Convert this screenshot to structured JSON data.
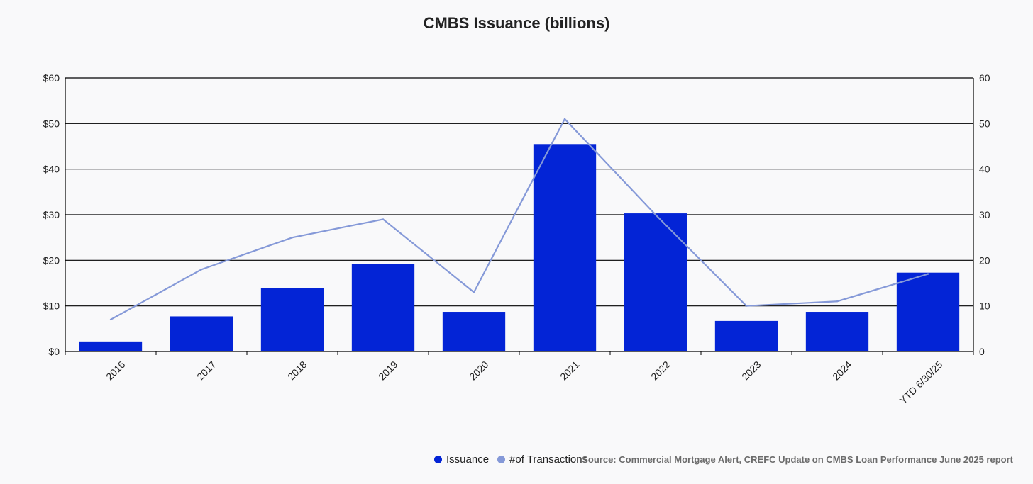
{
  "colors": {
    "issuance": "#0324d6",
    "transactions": "#8599d8",
    "grid": "#000000"
  },
  "legend": {
    "issuance": "Issuance",
    "transactions": "#of Transactions"
  },
  "source": "Source: Commercial Mortgage Alert, CREFC Update on CMBS Loan Performance June 2025 report",
  "chart_data": {
    "type": "bar",
    "title": "CMBS Issuance (billions)",
    "categories": [
      "2016",
      "2017",
      "2018",
      "2019",
      "2020",
      "2021",
      "2022",
      "2023",
      "2024",
      "YTD 6/30/25"
    ],
    "series": [
      {
        "name": "Issuance",
        "type": "bar",
        "axis": "left",
        "values": [
          2.2,
          7.7,
          13.9,
          19.2,
          8.7,
          45.5,
          30.3,
          6.7,
          8.7,
          17.3
        ]
      },
      {
        "name": "#of Transactions",
        "type": "line",
        "axis": "right",
        "values": [
          7,
          18,
          25,
          29,
          13,
          51,
          30,
          10,
          11,
          17
        ]
      }
    ],
    "ylim": [
      0,
      60
    ],
    "y2lim": [
      0,
      60
    ],
    "yticks": [
      0,
      10,
      20,
      30,
      40,
      50,
      60
    ],
    "ytick_labels": [
      "$0",
      "$10",
      "$20",
      "$30",
      "$40",
      "$50",
      "$60"
    ],
    "y2tick_labels": [
      "0",
      "10",
      "20",
      "30",
      "40",
      "50",
      "60"
    ],
    "grid": true,
    "legend_position": "bottom"
  }
}
